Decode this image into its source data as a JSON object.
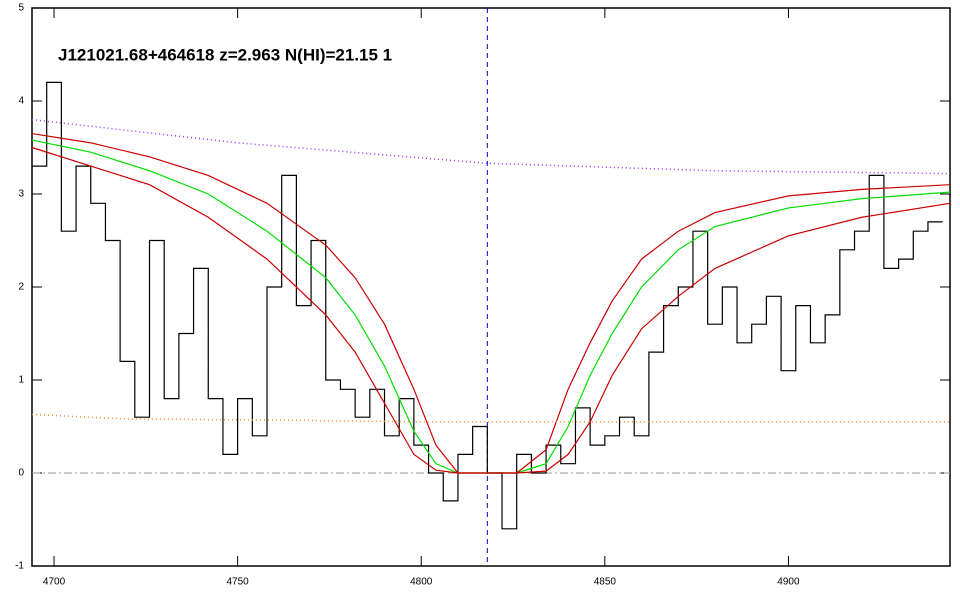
{
  "chart_data": {
    "type": "line",
    "title": "J121021.68+464618 z=2.963 N(HI)=21.15 1",
    "xlim": [
      4694,
      4944
    ],
    "ylim": [
      -1,
      5
    ],
    "xticks": [
      4700,
      4750,
      4800,
      4850,
      4900
    ],
    "yticks": [
      -1,
      0,
      1,
      2,
      3,
      4,
      5
    ],
    "reference_x": 4818,
    "reference_y": 0,
    "series": [
      {
        "color": "#000000",
        "style": "step",
        "x": [
          4696,
          4700,
          4704,
          4708,
          4712,
          4716,
          4720,
          4724,
          4728,
          4732,
          4736,
          4740,
          4744,
          4748,
          4752,
          4756,
          4760,
          4764,
          4768,
          4772,
          4776,
          4780,
          4784,
          4788,
          4792,
          4796,
          4800,
          4804,
          4808,
          4812,
          4816,
          4820,
          4824,
          4828,
          4832,
          4836,
          4840,
          4844,
          4848,
          4852,
          4856,
          4860,
          4864,
          4868,
          4872,
          4876,
          4880,
          4884,
          4888,
          4892,
          4896,
          4900,
          4904,
          4908,
          4912,
          4916,
          4920,
          4924,
          4928,
          4932,
          4936,
          4940
        ],
        "values": [
          3.3,
          4.2,
          2.6,
          3.3,
          2.9,
          2.5,
          1.2,
          0.6,
          2.5,
          0.8,
          1.5,
          2.2,
          0.8,
          0.2,
          0.8,
          0.4,
          2.0,
          3.2,
          1.8,
          2.5,
          1.0,
          0.9,
          0.6,
          0.9,
          0.4,
          0.8,
          0.3,
          0.0,
          -0.3,
          0.2,
          0.5,
          0.0,
          -0.6,
          0.2,
          0.0,
          0.3,
          0.1,
          0.7,
          0.3,
          0.4,
          0.6,
          0.4,
          1.3,
          1.8,
          2.0,
          2.6,
          1.6,
          2.0,
          1.4,
          1.6,
          1.9,
          1.1,
          1.8,
          1.4,
          1.7,
          2.4,
          2.6,
          3.2,
          2.2,
          2.3,
          2.6,
          2.7
        ]
      },
      {
        "color": "#00dd00",
        "style": "solid",
        "x": [
          4694,
          4710,
          4726,
          4742,
          4758,
          4774,
          4782,
          4790,
          4798,
          4804,
          4810,
          4826,
          4834,
          4840,
          4846,
          4852,
          4860,
          4870,
          4880,
          4900,
          4920,
          4944
        ],
        "values": [
          3.58,
          3.45,
          3.25,
          3.0,
          2.6,
          2.1,
          1.7,
          1.15,
          0.45,
          0.1,
          0.0,
          0.0,
          0.1,
          0.5,
          1.05,
          1.5,
          2.0,
          2.4,
          2.65,
          2.85,
          2.95,
          3.02
        ]
      },
      {
        "color": "#cc0000",
        "style": "solid",
        "x": [
          4694,
          4710,
          4726,
          4742,
          4758,
          4774,
          4782,
          4790,
          4798,
          4804,
          4810,
          4826,
          4834,
          4840,
          4846,
          4852,
          4860,
          4870,
          4880,
          4900,
          4920,
          4944
        ],
        "values": [
          3.65,
          3.55,
          3.4,
          3.2,
          2.9,
          2.45,
          2.1,
          1.6,
          0.9,
          0.3,
          0.0,
          0.0,
          0.25,
          0.9,
          1.4,
          1.85,
          2.3,
          2.6,
          2.8,
          2.98,
          3.05,
          3.1
        ]
      },
      {
        "color": "#cc0000",
        "style": "solid",
        "x": [
          4694,
          4710,
          4726,
          4742,
          4758,
          4774,
          4782,
          4790,
          4798,
          4804,
          4810,
          4826,
          4834,
          4840,
          4846,
          4852,
          4860,
          4870,
          4880,
          4900,
          4920,
          4944
        ],
        "values": [
          3.5,
          3.3,
          3.1,
          2.75,
          2.3,
          1.7,
          1.3,
          0.75,
          0.2,
          0.03,
          0.0,
          0.0,
          0.02,
          0.2,
          0.55,
          1.05,
          1.55,
          1.9,
          2.2,
          2.55,
          2.75,
          2.9
        ]
      },
      {
        "color": "#9933ff",
        "style": "dotted",
        "x": [
          4694,
          4750,
          4818,
          4880,
          4944
        ],
        "values": [
          3.8,
          3.55,
          3.33,
          3.25,
          3.22
        ]
      },
      {
        "color": "#ff8833",
        "style": "dotted",
        "x": [
          4694,
          4720,
          4760,
          4800,
          4850,
          4900,
          4944
        ],
        "values": [
          0.63,
          0.58,
          0.57,
          0.55,
          0.55,
          0.55,
          0.55
        ]
      }
    ]
  }
}
